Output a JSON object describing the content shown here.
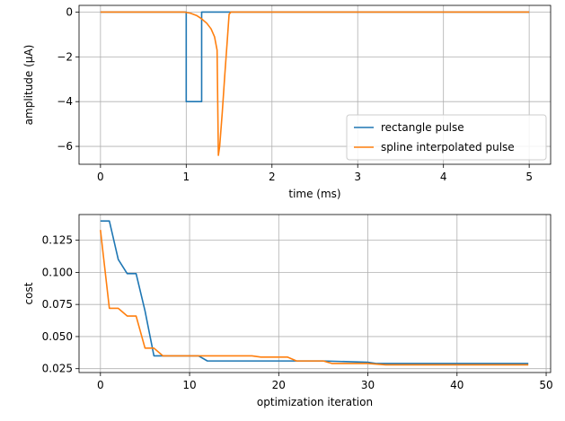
{
  "chart_data": [
    {
      "type": "line",
      "title": "",
      "xlabel": "time (ms)",
      "ylabel": "amplitude (μA)",
      "xlim": [
        -0.25,
        5.25
      ],
      "ylim": [
        -6.8,
        0.3
      ],
      "xticks": [
        0,
        1,
        2,
        3,
        4,
        5
      ],
      "yticks": [
        0,
        -2,
        -4,
        -6
      ],
      "xtick_labels": [
        "0",
        "1",
        "2",
        "3",
        "4",
        "5"
      ],
      "ytick_labels": [
        "0",
        "−2",
        "−4",
        "−6"
      ],
      "grid": true,
      "legend_position": "lower-right",
      "series": [
        {
          "name": "rectangle pulse",
          "color": "#1f77b4",
          "x": [
            0,
            1.0,
            1.0,
            1.18,
            1.18,
            5
          ],
          "y": [
            0,
            0,
            -4.0,
            -4.0,
            0,
            0
          ]
        },
        {
          "name": "spline interpolated pulse",
          "color": "#ff7f0e",
          "x": [
            0,
            0.98,
            1.05,
            1.12,
            1.18,
            1.24,
            1.29,
            1.33,
            1.36,
            1.375,
            1.39,
            1.42,
            1.45,
            1.48,
            1.5,
            1.52,
            5
          ],
          "y": [
            0,
            0,
            -0.05,
            -0.15,
            -0.3,
            -0.5,
            -0.75,
            -1.1,
            -1.7,
            -6.4,
            -6.0,
            -4.5,
            -2.8,
            -1.2,
            -0.1,
            0,
            0
          ]
        }
      ]
    },
    {
      "type": "line",
      "title": "",
      "xlabel": "optimization iteration",
      "ylabel": "cost",
      "xlim": [
        -2.4,
        50.5
      ],
      "ylim": [
        0.022,
        0.145
      ],
      "xticks": [
        0,
        10,
        20,
        30,
        40,
        50
      ],
      "yticks": [
        0.025,
        0.05,
        0.075,
        0.1,
        0.125
      ],
      "xtick_labels": [
        "0",
        "10",
        "20",
        "30",
        "40",
        "50"
      ],
      "ytick_labels": [
        "0.025",
        "0.050",
        "0.075",
        "0.100",
        "0.125"
      ],
      "grid": true,
      "series": [
        {
          "name": "rectangle pulse",
          "color": "#1f77b4",
          "x": [
            0,
            1,
            2,
            3,
            4,
            5,
            6,
            7,
            8,
            9,
            10,
            11,
            12,
            15,
            20,
            25,
            30,
            31,
            35,
            40,
            45,
            48
          ],
          "y": [
            0.14,
            0.14,
            0.11,
            0.099,
            0.099,
            0.07,
            0.035,
            0.035,
            0.035,
            0.035,
            0.035,
            0.035,
            0.031,
            0.031,
            0.031,
            0.031,
            0.03,
            0.029,
            0.029,
            0.029,
            0.029,
            0.029
          ]
        },
        {
          "name": "spline interpolated pulse",
          "color": "#ff7f0e",
          "x": [
            0,
            1,
            2,
            3,
            4,
            5,
            6,
            7,
            8,
            10,
            12,
            15,
            17,
            18,
            19,
            20,
            21,
            22,
            25,
            26,
            30,
            32,
            35,
            40,
            45,
            48
          ],
          "y": [
            0.133,
            0.072,
            0.072,
            0.066,
            0.066,
            0.041,
            0.041,
            0.035,
            0.035,
            0.035,
            0.035,
            0.035,
            0.035,
            0.034,
            0.034,
            0.034,
            0.034,
            0.031,
            0.031,
            0.029,
            0.029,
            0.028,
            0.028,
            0.028,
            0.028,
            0.028
          ]
        }
      ]
    }
  ]
}
